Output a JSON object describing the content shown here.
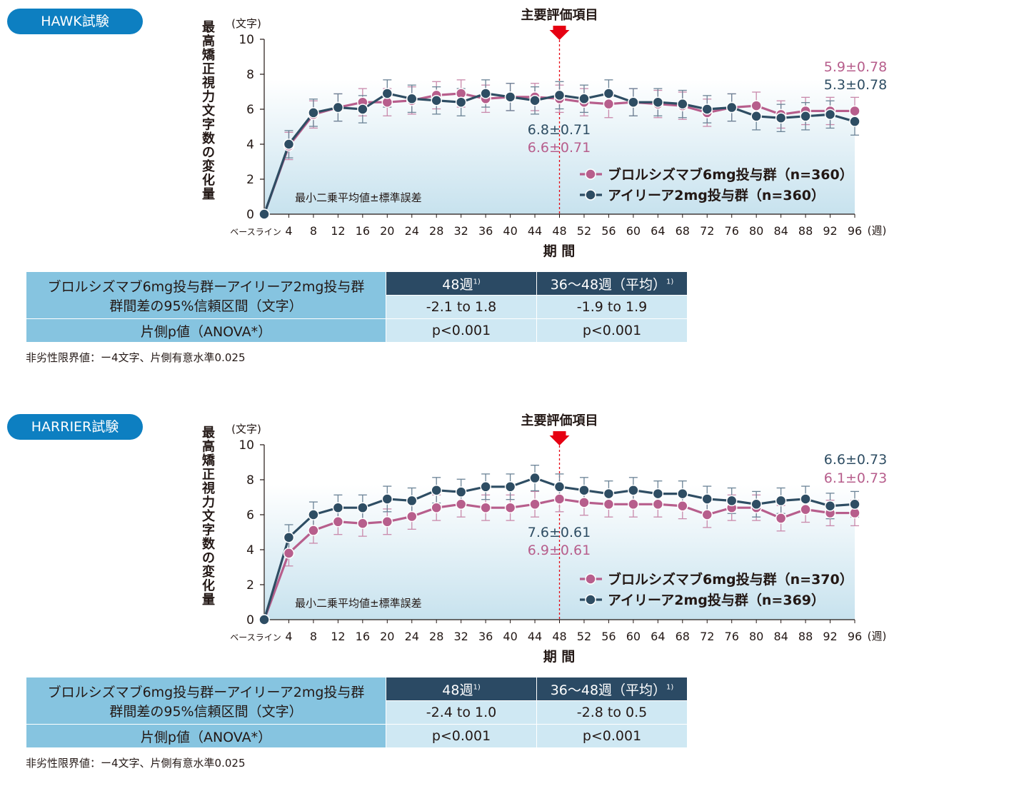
{
  "colors": {
    "brolucizumab": "#b75e8c",
    "aflibercept": "#2e4d63",
    "badge": "#0d7fc1",
    "arrow": "#e60012"
  },
  "studies": [
    {
      "badge": "HAWK試験",
      "table": {
        "row1_label_line1": "ブロルシズマブ6mg投与群ーアイリーア2mg投与群",
        "row1_label_line2": "群間差の95%信頼区間（文字）",
        "col1_header": "48週",
        "col2_header": "36～48週（平均）",
        "footnote_mark": "1)",
        "ci_48": "-2.1 to 1.8",
        "ci_36_48": "-1.9 to 1.9",
        "p_label": "片側p値（ANOVA*）",
        "p_48": "p<0.001",
        "p_36_48": "p<0.001"
      },
      "note": "非劣性限界値：ー4文字、片側有意水準0.025"
    },
    {
      "badge": "HARRIER試験",
      "table": {
        "row1_label_line1": "ブロルシズマブ6mg投与群ーアイリーア2mg投与群",
        "row1_label_line2": "群間差の95%信頼区間（文字）",
        "col1_header": "48週",
        "col2_header": "36～48週（平均）",
        "footnote_mark": "1)",
        "ci_48": "-2.4 to 1.0",
        "ci_36_48": "-2.8 to 0.5",
        "p_label": "片側p値（ANOVA*）",
        "p_48": "p<0.001",
        "p_36_48": "p<0.001"
      },
      "note": "非劣性限界値：ー4文字、片側有意水準0.025"
    }
  ],
  "chart_data": [
    {
      "type": "line",
      "title": "HAWK試験",
      "ylabel": "最高矯正視力文字数の変化量",
      "yunit": "(文字)",
      "xlabel": "期 間",
      "xunit": "(週)",
      "ylim": [
        0,
        10
      ],
      "yticks": [
        0,
        2,
        4,
        6,
        8,
        10
      ],
      "categories": [
        "ベースライン",
        "4",
        "8",
        "12",
        "16",
        "20",
        "24",
        "28",
        "32",
        "36",
        "40",
        "44",
        "48",
        "52",
        "56",
        "60",
        "64",
        "68",
        "72",
        "76",
        "80",
        "84",
        "88",
        "92",
        "96"
      ],
      "primary_endpoint_label": "主要評価項目",
      "primary_endpoint_week": "48",
      "method_note": "最小二乗平均値±標準誤差",
      "series": [
        {
          "name": "ブロルシズマブ6mg投与群（n=360）",
          "color": "#b75e8c",
          "values": [
            0,
            3.9,
            5.7,
            6.1,
            6.4,
            6.4,
            6.5,
            6.8,
            6.9,
            6.6,
            6.7,
            6.7,
            6.6,
            6.4,
            6.3,
            6.4,
            6.3,
            6.2,
            5.8,
            6.1,
            6.2,
            5.7,
            5.9,
            5.9,
            5.9
          ],
          "error": 0.78,
          "annotations": [
            "6.6±0.71",
            "5.9±0.78"
          ]
        },
        {
          "name": "アイリーア2mg投与群（n=360）",
          "color": "#2e4d63",
          "values": [
            0,
            4.0,
            5.8,
            6.1,
            6.0,
            6.9,
            6.6,
            6.5,
            6.4,
            6.9,
            6.7,
            6.5,
            6.8,
            6.6,
            6.9,
            6.4,
            6.4,
            6.3,
            6.0,
            6.1,
            5.6,
            5.5,
            5.6,
            5.7,
            5.3
          ],
          "error": 0.78,
          "annotations": [
            "6.8±0.71",
            "5.3±0.78"
          ]
        }
      ]
    },
    {
      "type": "line",
      "title": "HARRIER試験",
      "ylabel": "最高矯正視力文字数の変化量",
      "yunit": "(文字)",
      "xlabel": "期 間",
      "xunit": "(週)",
      "ylim": [
        0,
        10
      ],
      "yticks": [
        0,
        2,
        4,
        6,
        8,
        10
      ],
      "categories": [
        "ベースライン",
        "4",
        "8",
        "12",
        "16",
        "20",
        "24",
        "28",
        "32",
        "36",
        "40",
        "44",
        "48",
        "52",
        "56",
        "60",
        "64",
        "68",
        "72",
        "76",
        "80",
        "84",
        "88",
        "92",
        "96"
      ],
      "primary_endpoint_label": "主要評価項目",
      "primary_endpoint_week": "48",
      "method_note": "最小二乗平均値±標準誤差",
      "series": [
        {
          "name": "ブロルシズマブ6mg投与群（n=370）",
          "color": "#b75e8c",
          "values": [
            0,
            3.8,
            5.1,
            5.6,
            5.5,
            5.6,
            5.9,
            6.4,
            6.6,
            6.4,
            6.4,
            6.6,
            6.9,
            6.7,
            6.6,
            6.6,
            6.6,
            6.5,
            6.0,
            6.4,
            6.4,
            5.8,
            6.3,
            6.1,
            6.1
          ],
          "error": 0.73,
          "annotations": [
            "6.9±0.61",
            "6.1±0.73"
          ]
        },
        {
          "name": "アイリーア2mg投与群（n=369）",
          "color": "#2e4d63",
          "values": [
            0,
            4.7,
            6.0,
            6.4,
            6.4,
            6.9,
            6.8,
            7.4,
            7.3,
            7.6,
            7.6,
            8.1,
            7.6,
            7.4,
            7.2,
            7.4,
            7.2,
            7.2,
            6.9,
            6.8,
            6.6,
            6.8,
            6.9,
            6.5,
            6.6
          ],
          "error": 0.73,
          "annotations": [
            "7.6±0.61",
            "6.6±0.73"
          ]
        }
      ]
    }
  ]
}
